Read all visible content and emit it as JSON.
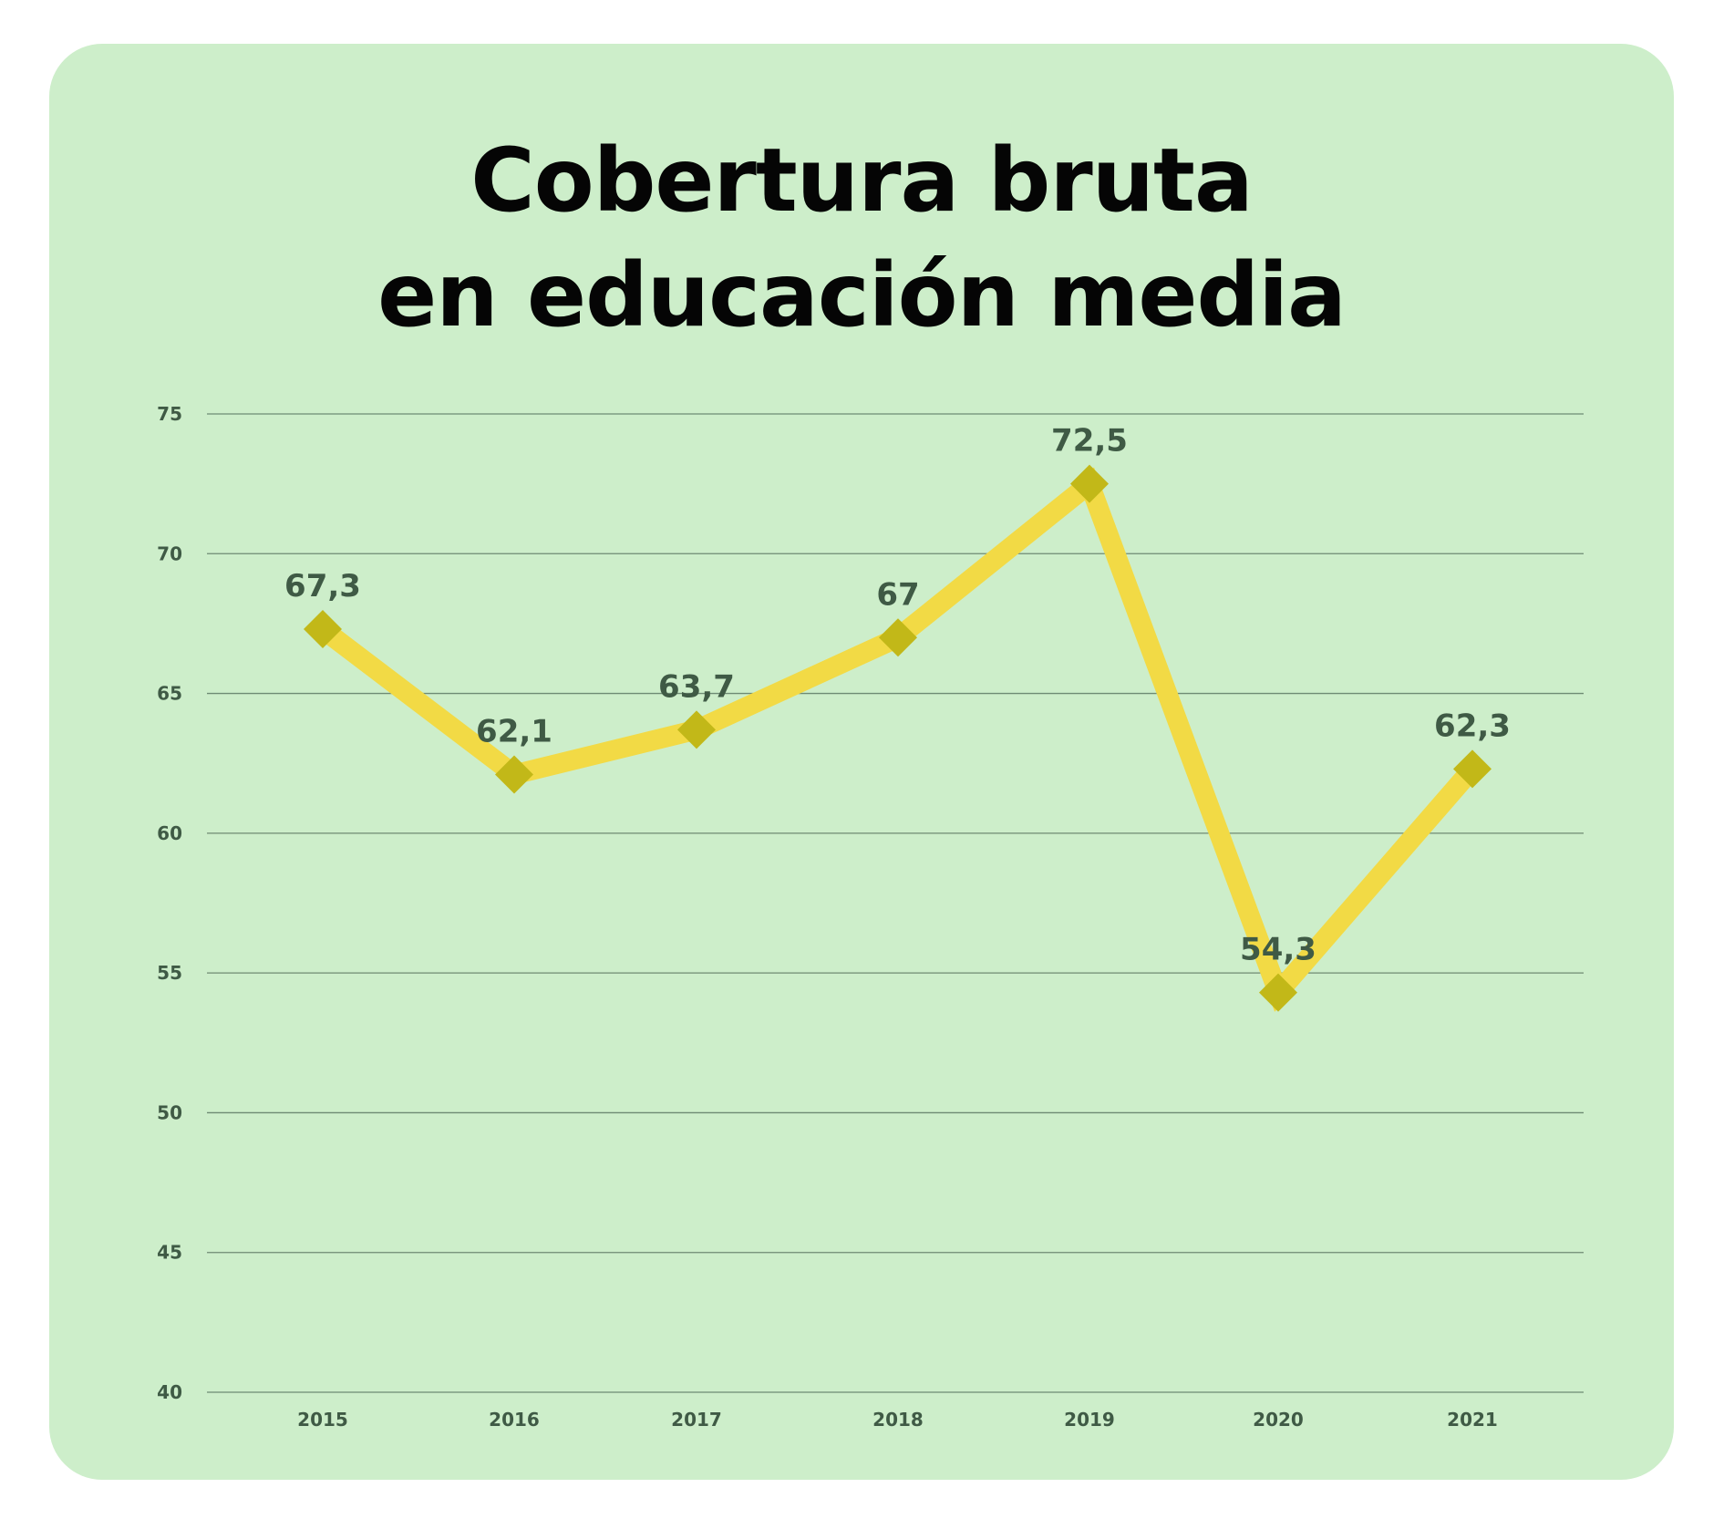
{
  "chart_data": {
    "type": "line",
    "title_lines": [
      "Cobertura bruta",
      "en educación media"
    ],
    "categories": [
      "2015",
      "2016",
      "2017",
      "2018",
      "2019",
      "2020",
      "2021"
    ],
    "values": [
      67.3,
      62.1,
      63.7,
      67,
      72.5,
      54.3,
      62.3
    ],
    "data_labels": [
      "67,3",
      "62,1",
      "63,7",
      "67",
      "72,5",
      "54,3",
      "62,3"
    ],
    "yticks": [
      40,
      45,
      50,
      55,
      60,
      65,
      70,
      75
    ],
    "ylim": [
      40,
      75
    ],
    "xlabel": "",
    "ylabel": "",
    "grid": true,
    "legend": "none",
    "colors": {
      "background": "#cdeeca",
      "line": "#f2da45",
      "marker": "#c2b818",
      "grid": "#6e8a73",
      "text": "#3f5a45",
      "title": "#050505"
    }
  }
}
